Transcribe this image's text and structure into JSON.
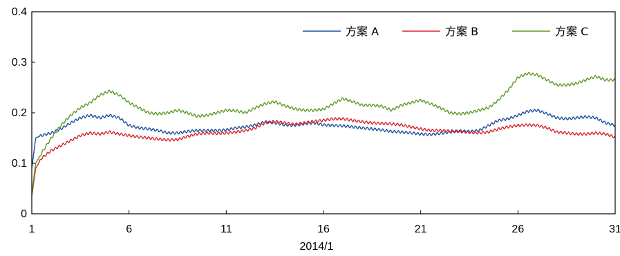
{
  "chart_data": {
    "type": "line",
    "xlabel": "2014/1",
    "ylabel": "",
    "xlim": [
      1,
      31
    ],
    "ylim": [
      0,
      0.4
    ],
    "xticks": [
      1,
      6,
      11,
      16,
      21,
      26,
      31
    ],
    "xtick_labels": [
      "1",
      "6",
      "11",
      "16",
      "21",
      "26",
      "31"
    ],
    "yticks": [
      0,
      0.1,
      0.2,
      0.3,
      0.4
    ],
    "ytick_labels": [
      "0",
      "0.1",
      "0.2",
      "0.3",
      "0.4"
    ],
    "grid": false,
    "legend_position": "top-right",
    "series": [
      {
        "name": "方案 A",
        "color": "#1f4e9c",
        "x": [
          1,
          1.2,
          1.5,
          2,
          2.5,
          3,
          3.5,
          4,
          4.5,
          5,
          5.5,
          6,
          6.5,
          7,
          7.5,
          8,
          8.5,
          9,
          9.5,
          10,
          10.5,
          11,
          11.5,
          12,
          12.5,
          13,
          13.5,
          14,
          14.5,
          15,
          15.5,
          16,
          16.5,
          17,
          17.5,
          18,
          18.5,
          19,
          19.5,
          20,
          20.5,
          21,
          21.5,
          22,
          22.5,
          23,
          23.5,
          24,
          24.5,
          25,
          25.5,
          26,
          26.5,
          27,
          27.5,
          28,
          28.5,
          29,
          29.5,
          30,
          30.5,
          31
        ],
        "y": [
          0.09,
          0.15,
          0.155,
          0.16,
          0.168,
          0.18,
          0.19,
          0.195,
          0.19,
          0.195,
          0.19,
          0.175,
          0.17,
          0.168,
          0.165,
          0.16,
          0.16,
          0.163,
          0.165,
          0.165,
          0.165,
          0.166,
          0.17,
          0.172,
          0.176,
          0.182,
          0.18,
          0.176,
          0.175,
          0.178,
          0.18,
          0.176,
          0.175,
          0.174,
          0.172,
          0.17,
          0.168,
          0.166,
          0.163,
          0.162,
          0.16,
          0.158,
          0.157,
          0.159,
          0.162,
          0.164,
          0.163,
          0.165,
          0.175,
          0.185,
          0.188,
          0.195,
          0.203,
          0.205,
          0.198,
          0.19,
          0.188,
          0.19,
          0.192,
          0.19,
          0.18,
          0.175
        ]
      },
      {
        "name": "方案 B",
        "color": "#d8232a",
        "x": [
          1,
          1.2,
          1.5,
          2,
          2.5,
          3,
          3.5,
          4,
          4.5,
          5,
          5.5,
          6,
          6.5,
          7,
          7.5,
          8,
          8.5,
          9,
          9.5,
          10,
          10.5,
          11,
          11.5,
          12,
          12.5,
          13,
          13.5,
          14,
          14.5,
          15,
          15.5,
          16,
          16.5,
          17,
          17.5,
          18,
          18.5,
          19,
          19.5,
          20,
          20.5,
          21,
          21.5,
          22,
          22.5,
          23,
          23.5,
          24,
          24.5,
          25,
          25.5,
          26,
          26.5,
          27,
          27.5,
          28,
          28.5,
          29,
          29.5,
          30,
          30.5,
          31
        ],
        "y": [
          0.035,
          0.09,
          0.11,
          0.125,
          0.135,
          0.145,
          0.155,
          0.16,
          0.158,
          0.162,
          0.158,
          0.155,
          0.152,
          0.15,
          0.148,
          0.146,
          0.147,
          0.153,
          0.158,
          0.16,
          0.159,
          0.16,
          0.162,
          0.165,
          0.17,
          0.18,
          0.183,
          0.18,
          0.177,
          0.18,
          0.183,
          0.185,
          0.188,
          0.188,
          0.185,
          0.182,
          0.18,
          0.179,
          0.178,
          0.176,
          0.172,
          0.168,
          0.165,
          0.165,
          0.164,
          0.163,
          0.161,
          0.16,
          0.162,
          0.168,
          0.172,
          0.175,
          0.176,
          0.175,
          0.17,
          0.162,
          0.16,
          0.158,
          0.158,
          0.16,
          0.158,
          0.152
        ]
      },
      {
        "name": "方案 C",
        "color": "#5a9a26",
        "x": [
          1,
          1.2,
          1.5,
          2,
          2.5,
          3,
          3.5,
          4,
          4.5,
          5,
          5.5,
          6,
          6.5,
          7,
          7.5,
          8,
          8.5,
          9,
          9.5,
          10,
          10.5,
          11,
          11.5,
          12,
          12.5,
          13,
          13.5,
          14,
          14.5,
          15,
          15.5,
          16,
          16.5,
          17,
          17.5,
          18,
          18.5,
          19,
          19.5,
          20,
          20.5,
          21,
          21.5,
          22,
          22.5,
          23,
          23.5,
          24,
          24.5,
          25,
          25.5,
          26,
          26.5,
          27,
          27.5,
          28,
          28.5,
          29,
          29.5,
          30,
          30.5,
          31
        ],
        "y": [
          0.04,
          0.1,
          0.12,
          0.15,
          0.175,
          0.195,
          0.21,
          0.22,
          0.235,
          0.243,
          0.235,
          0.22,
          0.21,
          0.2,
          0.198,
          0.2,
          0.205,
          0.2,
          0.193,
          0.195,
          0.2,
          0.205,
          0.204,
          0.2,
          0.21,
          0.218,
          0.222,
          0.214,
          0.208,
          0.205,
          0.205,
          0.207,
          0.218,
          0.228,
          0.222,
          0.215,
          0.215,
          0.213,
          0.205,
          0.215,
          0.22,
          0.225,
          0.218,
          0.21,
          0.2,
          0.198,
          0.2,
          0.205,
          0.21,
          0.225,
          0.245,
          0.27,
          0.278,
          0.275,
          0.265,
          0.255,
          0.255,
          0.258,
          0.265,
          0.272,
          0.265,
          0.265
        ]
      }
    ]
  }
}
